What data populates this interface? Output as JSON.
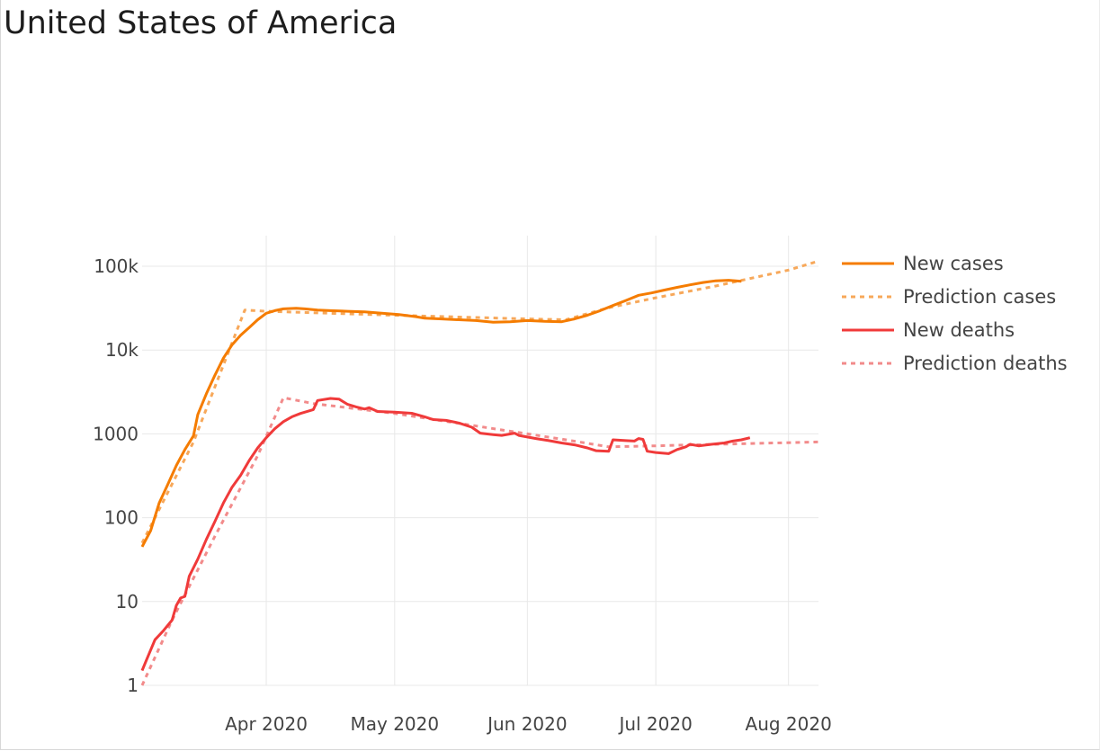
{
  "header": {
    "title": "United States of America"
  },
  "chart_data": {
    "type": "line",
    "title": "",
    "xlabel": "",
    "ylabel": "",
    "yscale": "log",
    "xlim": [
      "2020-03-03",
      "2020-08-08"
    ],
    "ylim": [
      1,
      200000
    ],
    "grid": true,
    "legend_position": "right",
    "x_ticks": [
      "2020-04-01",
      "2020-05-01",
      "2020-06-01",
      "2020-07-01",
      "2020-08-01"
    ],
    "x_tick_labels": [
      "Apr 2020",
      "May 2020",
      "Jun 2020",
      "Jul 2020",
      "Aug 2020"
    ],
    "y_ticks": [
      1,
      10,
      100,
      1000,
      10000,
      100000
    ],
    "y_tick_labels": [
      "1",
      "10",
      "100",
      "1000",
      "10k",
      "100k"
    ],
    "series": [
      {
        "name": "New cases",
        "color": "#f57c00",
        "style": "solid",
        "points": [
          [
            "2020-03-03",
            45
          ],
          [
            "2020-03-05",
            70
          ],
          [
            "2020-03-07",
            150
          ],
          [
            "2020-03-09",
            250
          ],
          [
            "2020-03-11",
            420
          ],
          [
            "2020-03-13",
            650
          ],
          [
            "2020-03-15",
            950
          ],
          [
            "2020-03-16",
            1700
          ],
          [
            "2020-03-18",
            3000
          ],
          [
            "2020-03-20",
            5000
          ],
          [
            "2020-03-22",
            8000
          ],
          [
            "2020-03-24",
            11500
          ],
          [
            "2020-03-26",
            15000
          ],
          [
            "2020-03-28",
            18500
          ],
          [
            "2020-03-30",
            23000
          ],
          [
            "2020-04-01",
            27500
          ],
          [
            "2020-04-03",
            29500
          ],
          [
            "2020-04-05",
            31000
          ],
          [
            "2020-04-08",
            31500
          ],
          [
            "2020-04-10",
            31000
          ],
          [
            "2020-04-13",
            30000
          ],
          [
            "2020-04-16",
            29500
          ],
          [
            "2020-04-20",
            29000
          ],
          [
            "2020-04-24",
            28500
          ],
          [
            "2020-04-28",
            27500
          ],
          [
            "2020-05-02",
            26500
          ],
          [
            "2020-05-06",
            25000
          ],
          [
            "2020-05-08",
            24000
          ],
          [
            "2020-05-12",
            23500
          ],
          [
            "2020-05-16",
            23000
          ],
          [
            "2020-05-20",
            22500
          ],
          [
            "2020-05-24",
            21500
          ],
          [
            "2020-05-28",
            21800
          ],
          [
            "2020-06-01",
            22500
          ],
          [
            "2020-06-05",
            22000
          ],
          [
            "2020-06-09",
            21800
          ],
          [
            "2020-06-12",
            23500
          ],
          [
            "2020-06-15",
            26000
          ],
          [
            "2020-06-18",
            29500
          ],
          [
            "2020-06-21",
            34000
          ],
          [
            "2020-06-24",
            39000
          ],
          [
            "2020-06-27",
            45000
          ],
          [
            "2020-06-30",
            48000
          ],
          [
            "2020-07-03",
            52000
          ],
          [
            "2020-07-06",
            56000
          ],
          [
            "2020-07-09",
            60000
          ],
          [
            "2020-07-12",
            64000
          ],
          [
            "2020-07-15",
            67000
          ],
          [
            "2020-07-18",
            68000
          ],
          [
            "2020-07-21",
            66000
          ]
        ]
      },
      {
        "name": "Prediction cases",
        "color": "#f7a85a",
        "style": "dotted",
        "points": [
          [
            "2020-03-03",
            50
          ],
          [
            "2020-03-15",
            800
          ],
          [
            "2020-03-27",
            30000
          ],
          [
            "2020-04-01",
            29000
          ],
          [
            "2020-05-01",
            26000
          ],
          [
            "2020-06-01",
            23500
          ],
          [
            "2020-06-10",
            23000
          ],
          [
            "2020-06-20",
            32000
          ],
          [
            "2020-07-01",
            42000
          ],
          [
            "2020-07-15",
            58000
          ],
          [
            "2020-08-01",
            90000
          ],
          [
            "2020-08-08",
            115000
          ]
        ]
      },
      {
        "name": "New deaths",
        "color": "#f03a3a",
        "style": "solid",
        "points": [
          [
            "2020-03-03",
            1.5
          ],
          [
            "2020-03-04",
            2
          ],
          [
            "2020-03-06",
            3.5
          ],
          [
            "2020-03-08",
            4.5
          ],
          [
            "2020-03-10",
            6
          ],
          [
            "2020-03-11",
            9
          ],
          [
            "2020-03-12",
            11
          ],
          [
            "2020-03-13",
            11.5
          ],
          [
            "2020-03-14",
            20
          ],
          [
            "2020-03-16",
            32
          ],
          [
            "2020-03-18",
            55
          ],
          [
            "2020-03-20",
            90
          ],
          [
            "2020-03-22",
            150
          ],
          [
            "2020-03-24",
            230
          ],
          [
            "2020-03-26",
            320
          ],
          [
            "2020-03-28",
            480
          ],
          [
            "2020-03-30",
            680
          ],
          [
            "2020-04-01",
            900
          ],
          [
            "2020-04-03",
            1150
          ],
          [
            "2020-04-05",
            1400
          ],
          [
            "2020-04-07",
            1600
          ],
          [
            "2020-04-09",
            1750
          ],
          [
            "2020-04-12",
            1950
          ],
          [
            "2020-04-13",
            2500
          ],
          [
            "2020-04-16",
            2650
          ],
          [
            "2020-04-18",
            2600
          ],
          [
            "2020-04-20",
            2250
          ],
          [
            "2020-04-22",
            2100
          ],
          [
            "2020-04-24",
            1980
          ],
          [
            "2020-04-25",
            2050
          ],
          [
            "2020-04-27",
            1850
          ],
          [
            "2020-05-01",
            1820
          ],
          [
            "2020-05-05",
            1760
          ],
          [
            "2020-05-08",
            1600
          ],
          [
            "2020-05-10",
            1480
          ],
          [
            "2020-05-13",
            1450
          ],
          [
            "2020-05-16",
            1350
          ],
          [
            "2020-05-19",
            1200
          ],
          [
            "2020-05-21",
            1020
          ],
          [
            "2020-05-24",
            980
          ],
          [
            "2020-05-26",
            960
          ],
          [
            "2020-05-29",
            1020
          ],
          [
            "2020-05-30",
            960
          ],
          [
            "2020-06-03",
            880
          ],
          [
            "2020-06-06",
            830
          ],
          [
            "2020-06-09",
            780
          ],
          [
            "2020-06-12",
            740
          ],
          [
            "2020-06-15",
            680
          ],
          [
            "2020-06-17",
            630
          ],
          [
            "2020-06-20",
            620
          ],
          [
            "2020-06-21",
            850
          ],
          [
            "2020-06-24",
            830
          ],
          [
            "2020-06-26",
            820
          ],
          [
            "2020-06-27",
            880
          ],
          [
            "2020-06-28",
            860
          ],
          [
            "2020-06-29",
            620
          ],
          [
            "2020-07-01",
            600
          ],
          [
            "2020-07-04",
            580
          ],
          [
            "2020-07-06",
            650
          ],
          [
            "2020-07-08",
            700
          ],
          [
            "2020-07-09",
            750
          ],
          [
            "2020-07-11",
            720
          ],
          [
            "2020-07-14",
            750
          ],
          [
            "2020-07-17",
            780
          ],
          [
            "2020-07-19",
            820
          ],
          [
            "2020-07-21",
            850
          ],
          [
            "2020-07-23",
            900
          ]
        ]
      },
      {
        "name": "Prediction deaths",
        "color": "#f28b8b",
        "style": "dotted",
        "points": [
          [
            "2020-03-03",
            1
          ],
          [
            "2020-03-10",
            6
          ],
          [
            "2020-03-20",
            60
          ],
          [
            "2020-03-30",
            550
          ],
          [
            "2020-04-05",
            2700
          ],
          [
            "2020-04-12",
            2300
          ],
          [
            "2020-05-01",
            1750
          ],
          [
            "2020-06-01",
            1000
          ],
          [
            "2020-06-10",
            850
          ],
          [
            "2020-06-20",
            700
          ],
          [
            "2020-07-01",
            720
          ],
          [
            "2020-07-15",
            750
          ],
          [
            "2020-08-08",
            800
          ]
        ]
      }
    ]
  }
}
